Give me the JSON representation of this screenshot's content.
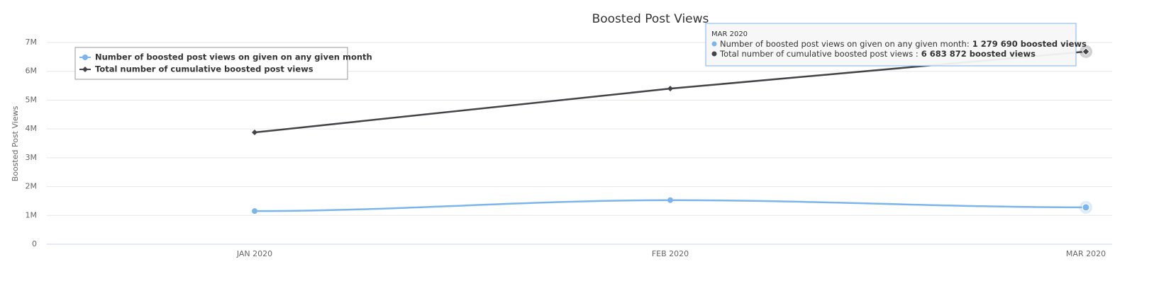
{
  "chart_data": {
    "type": "line",
    "title": "Boosted Post Views",
    "y_label": "Boosted Post Views",
    "categories": [
      "JAN 2020",
      "FEB 2020",
      "MAR 2020"
    ],
    "series": [
      {
        "name": "Number of boosted post views on given on any given month",
        "color": "#7cb5ec",
        "smooth": true,
        "marker": "circle",
        "values": [
          1150000,
          1530000,
          1279690
        ]
      },
      {
        "name": "Total number of cumulative boosted post views",
        "color": "#434348",
        "smooth": false,
        "marker": "diamond",
        "values": [
          3880000,
          5400000,
          6683872
        ]
      }
    ],
    "ylim": [
      0,
      7000000
    ],
    "yticks": [
      0,
      {
        "value": 1000000,
        "label": "1M"
      },
      {
        "value": 2000000,
        "label": "2M"
      },
      {
        "value": 3000000,
        "label": "3M"
      },
      {
        "value": 4000000,
        "label": "4M"
      },
      {
        "value": 5000000,
        "label": "5M"
      },
      {
        "value": 6000000,
        "label": "6M"
      },
      {
        "value": 7000000,
        "label": "7M"
      }
    ],
    "grid": true,
    "legend": "top-left",
    "tooltip": {
      "title": "MAR 2020",
      "items": [
        {
          "label": "Number of boosted post views on given on any given month:",
          "value_label": "1 279 690 boosted views"
        },
        {
          "label": "Total number of cumulative boosted post views :",
          "value_label": "6 683 872 boosted views"
        }
      ]
    }
  }
}
